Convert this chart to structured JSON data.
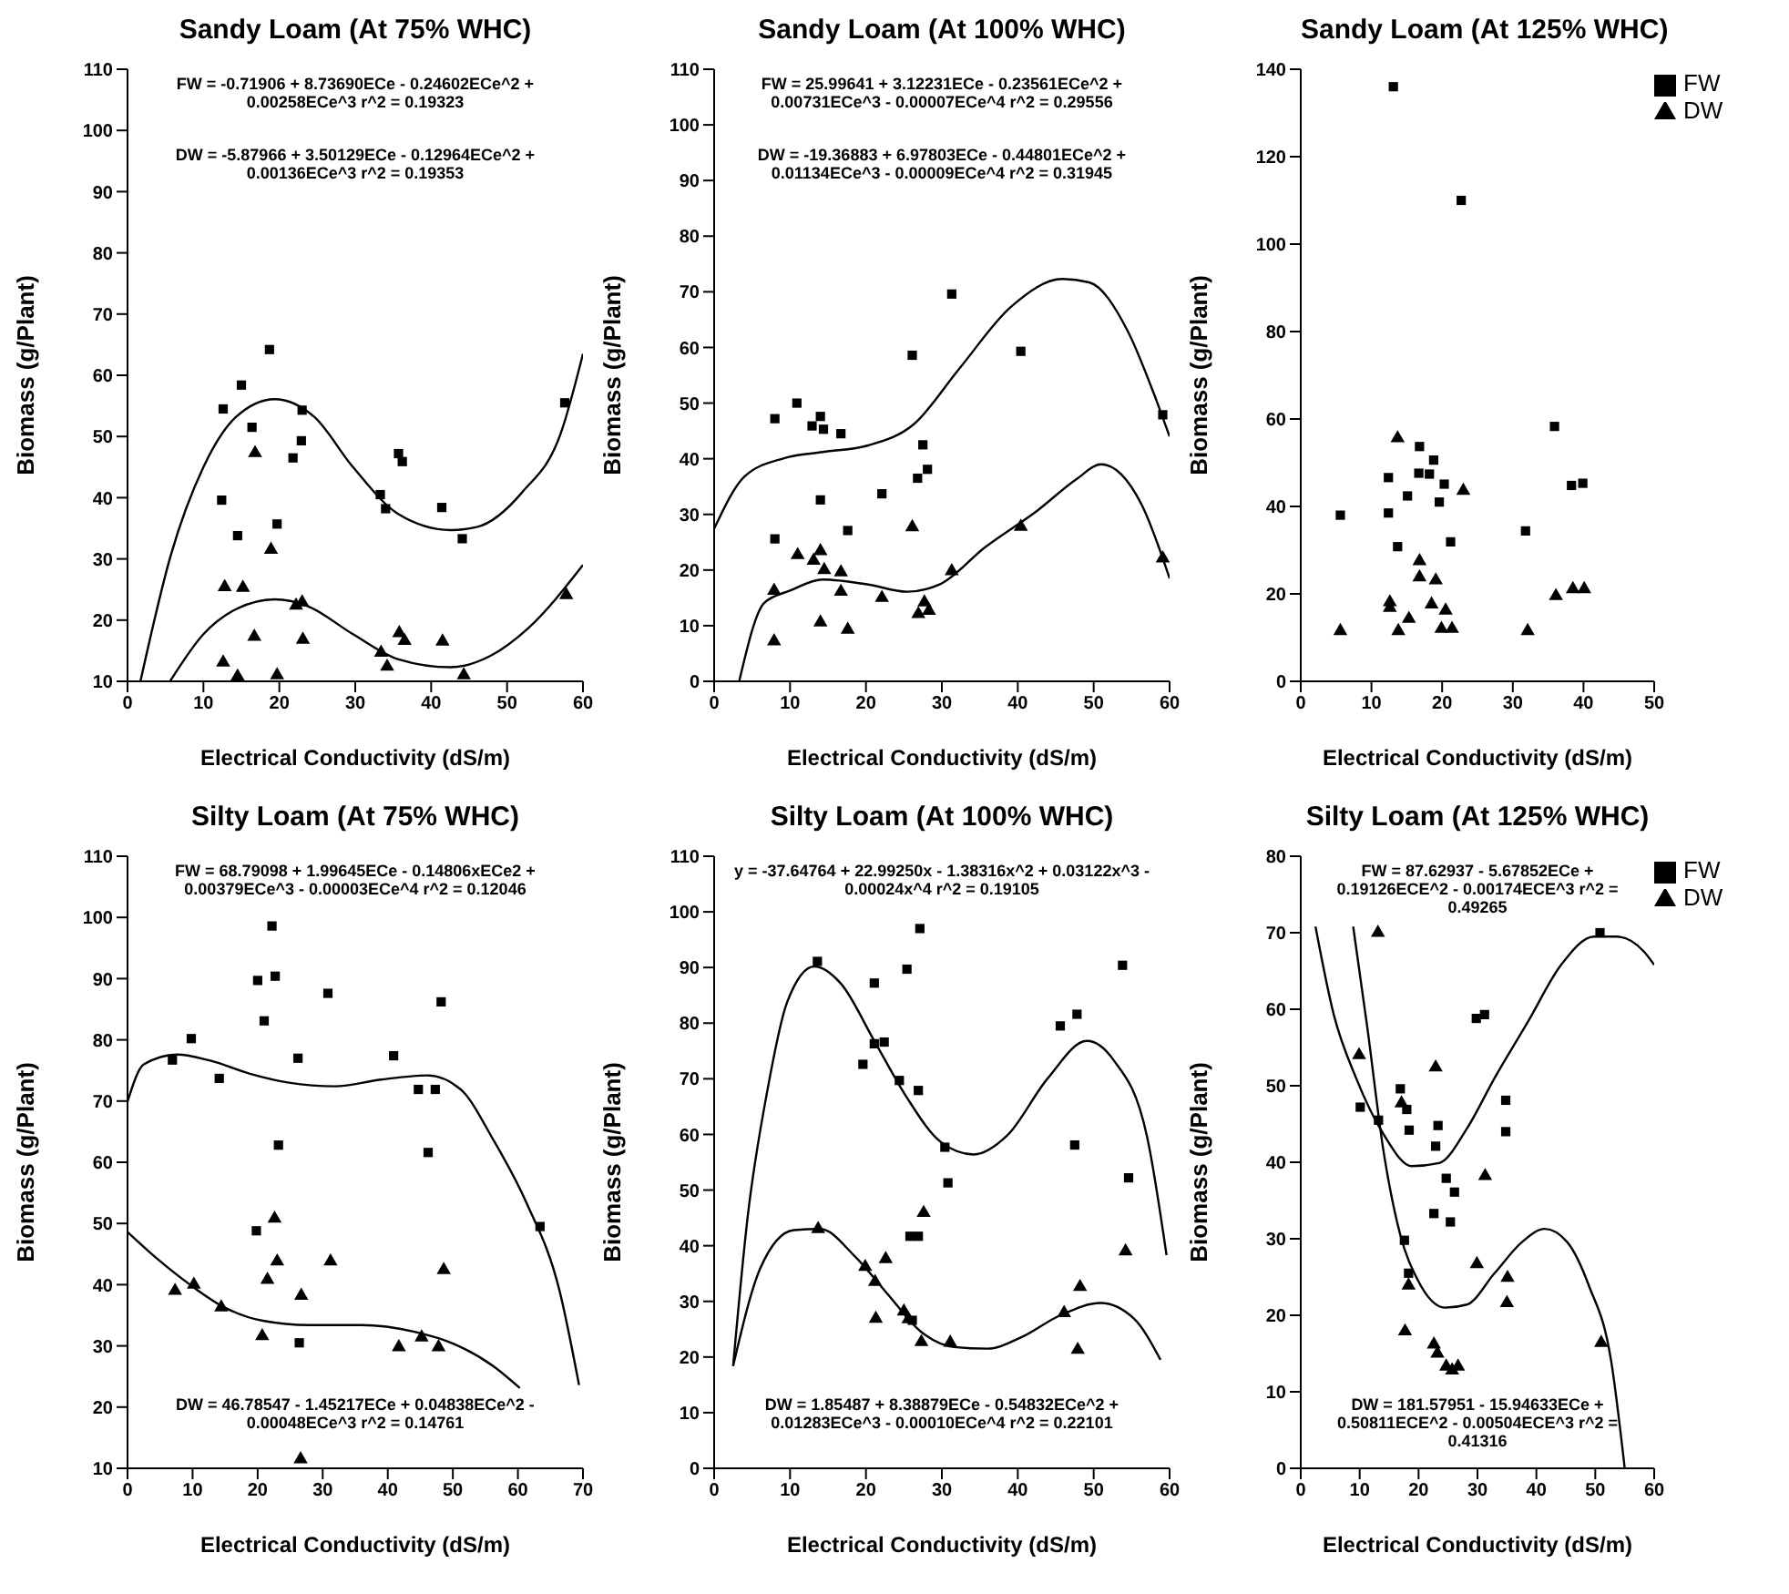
{
  "chart_data": [
    {
      "type": "scatter",
      "title": "Sandy Loam (At 75% WHC)",
      "xlabel": "Electrical Conductivity (dS/m)",
      "ylabel": "Biomass (g/Plant)",
      "xlim": [
        0,
        60
      ],
      "xticks": [
        0,
        10,
        20,
        30,
        40,
        50,
        60
      ],
      "ylim": [
        10,
        110
      ],
      "yticks": [
        10,
        20,
        30,
        40,
        50,
        60,
        70,
        80,
        90,
        100,
        110
      ],
      "series": [
        {
          "type": "scatter",
          "marker": "square",
          "color": "#000000",
          "x": [
            12.6,
            15,
            16.4,
            18.7,
            23,
            22.9,
            21.8,
            19.7,
            12.4,
            14.5,
            33.3,
            34,
            35.7,
            36.2,
            41.4,
            44.1,
            57.6
          ],
          "values": [
            54.5,
            58.4,
            51.5,
            64.2,
            54.3,
            49.3,
            46.5,
            35.7,
            39.6,
            33.8,
            40.5,
            38.2,
            47.2,
            45.9,
            38.4,
            33.3,
            55.5
          ]
        },
        {
          "type": "scatter",
          "marker": "triangle",
          "color": "#000000",
          "x": [
            16.8,
            18.9,
            12.8,
            15.2,
            16.7,
            12.6,
            14.5,
            19.7,
            23.1,
            22.2,
            23,
            33.4,
            34.2,
            35.8,
            36.5,
            41.5,
            44.3,
            57.8
          ],
          "values": [
            47.3,
            31.5,
            25.4,
            25.3,
            17.3,
            13.1,
            10.8,
            11,
            16.8,
            22.4,
            22.9,
            14.7,
            12.4,
            17.9,
            16.6,
            16.5,
            11,
            24.1
          ]
        },
        {
          "type": "line",
          "marker": "none",
          "line_style": "solid",
          "color": "#000000",
          "x": [
            1.7,
            5.7,
            10,
            14.3,
            19.4,
            24.6,
            29.7,
            35.7,
            42.6,
            46,
            52,
            57.1,
            60
          ],
          "values": [
            10,
            30.6,
            45,
            53.2,
            56.1,
            53.2,
            45,
            37.3,
            34.7,
            35.2,
            40.9,
            50.6,
            63.5
          ]
        },
        {
          "type": "line",
          "marker": "none",
          "line_style": "solid",
          "color": "#000000",
          "x": [
            5.6,
            10,
            14.3,
            19.4,
            23.7,
            29.7,
            35.7,
            42.6,
            47.7,
            52.8,
            60
          ],
          "values": [
            10,
            17.7,
            21.8,
            23.4,
            22.3,
            17.7,
            13.6,
            12.3,
            14.1,
            18.7,
            29
          ]
        }
      ],
      "annotations": [
        "FW = -0.71906 + 8.73690ECe - 0.24602ECe^2 + 0.00258ECe^3   r^2 = 0.19323",
        "DW = -5.87966 + 3.50129ECe - 0.12964ECe^2 + 0.00136ECe^3   r^2 = 0.19353"
      ]
    },
    {
      "type": "scatter",
      "title": "Sandy Loam (At 100% WHC)",
      "xlabel": "Electrical Conductivity (dS/m)",
      "ylabel": "Biomass (g/Plant)",
      "xlim": [
        0,
        60
      ],
      "xticks": [
        0,
        10,
        20,
        30,
        40,
        50,
        60
      ],
      "ylim": [
        0,
        110
      ],
      "yticks": [
        0,
        10,
        20,
        30,
        40,
        50,
        60,
        70,
        80,
        90,
        100,
        110
      ],
      "series": [
        {
          "type": "scatter",
          "marker": "square",
          "color": "#000000",
          "x": [
            8,
            10.9,
            12.9,
            14,
            14.4,
            16.7,
            8,
            14,
            17.6,
            22.1,
            26.1,
            27.5,
            26.8,
            28.1,
            31.3,
            40.4,
            59.1
          ],
          "values": [
            47.2,
            50,
            45.9,
            47.6,
            45.3,
            44.5,
            25.6,
            32.6,
            27.1,
            33.7,
            58.6,
            42.5,
            36.5,
            38.1,
            69.6,
            59.3,
            47.9
          ]
        },
        {
          "type": "scatter",
          "marker": "triangle",
          "color": "#000000",
          "x": [
            7.9,
            7.9,
            11,
            13.1,
            14,
            14.5,
            16.7,
            16.7,
            14,
            17.6,
            22.1,
            26.1,
            26.9,
            27.7,
            28.3,
            31.3,
            40.4,
            59.1
          ],
          "values": [
            16.3,
            7.2,
            22.7,
            21.7,
            23.4,
            20,
            19.6,
            16.1,
            10.6,
            9.3,
            15,
            27.7,
            12.1,
            14.2,
            12.7,
            19.8,
            27.8,
            22.1
          ]
        },
        {
          "type": "line",
          "marker": "none",
          "line_style": "solid",
          "color": "#000000",
          "x": [
            0,
            4,
            9.2,
            14.3,
            20.3,
            26.3,
            32.3,
            39.1,
            45.9,
            49.4,
            54.5,
            57.9,
            60
          ],
          "values": [
            27.4,
            36.8,
            40.1,
            41.2,
            42.4,
            46.2,
            56.2,
            67.3,
            72.3,
            71.7,
            62.9,
            51.8,
            44
          ]
        },
        {
          "type": "line",
          "marker": "none",
          "line_style": "solid",
          "color": "#000000",
          "x": [
            3.3,
            6.6,
            10,
            14.3,
            20.3,
            25.4,
            29.7,
            35.7,
            42.6,
            47.7,
            51,
            56.3,
            60
          ],
          "values": [
            0,
            14.1,
            16.3,
            18.3,
            17.4,
            16.1,
            17.4,
            24.1,
            30.7,
            36.3,
            39,
            31.8,
            18.5
          ]
        }
      ],
      "annotations": [
        "FW = 25.99641 + 3.12231ECe - 0.23561ECe^2 + 0.00731ECe^3 - 0.00007ECe^4   r^2 = 0.29556",
        "DW = -19.36883 + 6.97803ECe - 0.44801ECe^2 + 0.01134ECe^3 - 0.00009ECe^4   r^2 = 0.31945"
      ]
    },
    {
      "type": "scatter",
      "title": "Sandy Loam (At 125% WHC)",
      "xlabel": "Electrical Conductivity (dS/m)",
      "ylabel": "Biomass (g/Plant)",
      "xlim": [
        0,
        50
      ],
      "xticks": [
        0,
        10,
        20,
        30,
        40,
        50
      ],
      "ylim": [
        0,
        140
      ],
      "yticks": [
        0,
        20,
        40,
        60,
        80,
        100,
        120,
        140
      ],
      "legend": "right",
      "series": [
        {
          "name": "FW",
          "type": "scatter",
          "marker": "square",
          "color": "#000000",
          "x": [
            13.1,
            22.7,
            5.6,
            12.4,
            12.4,
            13.7,
            15.1,
            16.8,
            16.7,
            18.2,
            18.8,
            20.3,
            19.6,
            21.2,
            31.8,
            35.9,
            38.3,
            39.9
          ],
          "values": [
            136,
            110,
            38,
            46.6,
            38.5,
            30.8,
            42.4,
            53.7,
            47.6,
            47.4,
            50.6,
            45.1,
            41,
            31.9,
            34.4,
            58.3,
            44.8,
            45.3
          ]
        },
        {
          "name": "DW",
          "type": "scatter",
          "marker": "triangle",
          "color": "#000000",
          "x": [
            13.7,
            23,
            16.8,
            16.8,
            19.1,
            12.6,
            12.6,
            18.5,
            20.5,
            15.3,
            13.8,
            5.6,
            19.9,
            21.4,
            32.1,
            36.1,
            38.5,
            40.1
          ],
          "values": [
            55.6,
            43.6,
            27.5,
            23.8,
            23.1,
            18.1,
            16.8,
            17.6,
            16.2,
            14.3,
            11.5,
            11.5,
            12,
            12,
            11.5,
            19.5,
            21.1,
            21.1
          ]
        }
      ]
    },
    {
      "type": "scatter",
      "title": "Silty Loam (At 75% WHC)",
      "xlabel": "Electrical Conductivity (dS/m)",
      "ylabel": "Biomass (g/Plant)",
      "xlim": [
        0,
        70
      ],
      "xticks": [
        0,
        10,
        20,
        30,
        40,
        50,
        60,
        70
      ],
      "ylim": [
        10,
        110
      ],
      "yticks": [
        10,
        20,
        30,
        40,
        50,
        60,
        70,
        80,
        90,
        100,
        110
      ],
      "series": [
        {
          "type": "scatter",
          "marker": "square",
          "color": "#000000",
          "x": [
            6.9,
            9.8,
            14.1,
            22.2,
            20,
            22.7,
            21,
            26.2,
            23.2,
            19.8,
            26.4,
            30.8,
            40.9,
            44.7,
            47.3,
            46.2,
            48.2,
            63.4
          ],
          "values": [
            76.7,
            80.2,
            73.7,
            98.6,
            89.7,
            90.4,
            83.1,
            77,
            62.8,
            48.8,
            30.5,
            87.6,
            77.4,
            71.9,
            71.9,
            61.6,
            86.2,
            49.5
          ]
        },
        {
          "type": "scatter",
          "marker": "triangle",
          "color": "#000000",
          "x": [
            7.3,
            10.2,
            14.4,
            22.6,
            21.5,
            23,
            20.7,
            26.7,
            31.2,
            26.6,
            41.7,
            45.2,
            47.8,
            48.6
          ],
          "values": [
            39,
            40,
            36.3,
            50.8,
            40.8,
            43.8,
            31.6,
            38.2,
            43.8,
            11.5,
            29.8,
            31.4,
            29.8,
            42.4
          ]
        },
        {
          "type": "line",
          "marker": "none",
          "line_style": "solid",
          "color": "#000000",
          "x": [
            0,
            2.5,
            7.6,
            12.7,
            18.7,
            24.8,
            31.9,
            38.9,
            46.1,
            51.2,
            56.2,
            61.3,
            66.4,
            69.4
          ],
          "values": [
            69.9,
            76,
            77.6,
            76.6,
            74.5,
            73,
            72.4,
            73.5,
            74.2,
            71.9,
            63.7,
            53.4,
            39,
            23.6
          ]
        },
        {
          "type": "line",
          "marker": "none",
          "line_style": "solid",
          "color": "#000000",
          "x": [
            0,
            4.6,
            9.6,
            14.7,
            20.8,
            27.9,
            36,
            44.1,
            50.2,
            56.2,
            60.3
          ],
          "values": [
            48.6,
            44.2,
            40,
            36.4,
            34.1,
            33.4,
            33.4,
            32.3,
            30.3,
            26.7,
            23.1
          ]
        }
      ],
      "annotations": [
        "FW = 68.79098 + 1.99645ECe - 0.14806xECe2 + 0.00379ECe^3 - 0.00003ECe^4   r^2 = 0.12046",
        "DW = 46.78547 - 1.45217ECe + 0.04838ECe^2 - 0.00048ECe^3   r^2 = 0.14761"
      ]
    },
    {
      "type": "scatter",
      "title": "Silty Loam (At 100% WHC)",
      "xlabel": "Electrical Conductivity (dS/m)",
      "ylabel": "Biomass (g/Plant)",
      "xlim": [
        0,
        60
      ],
      "xticks": [
        0,
        10,
        20,
        30,
        40,
        50,
        60
      ],
      "ylim": [
        0,
        110
      ],
      "yticks": [
        0,
        10,
        20,
        30,
        40,
        50,
        60,
        70,
        80,
        90,
        100,
        110
      ],
      "series": [
        {
          "type": "scatter",
          "marker": "square",
          "color": "#000000",
          "x": [
            13.6,
            21.1,
            25.4,
            27.1,
            19.6,
            21.1,
            22.4,
            24.4,
            26.9,
            30.4,
            30.8,
            25.8,
            26.9,
            45.6,
            47.8,
            47.5,
            53.8,
            54.6,
            26.1
          ],
          "values": [
            91.1,
            87.2,
            89.7,
            97,
            72.6,
            76.3,
            76.6,
            69.7,
            67.9,
            57.7,
            51.3,
            41.7,
            41.7,
            79.5,
            81.6,
            58.1,
            90.4,
            52.2,
            26.6
          ]
        },
        {
          "type": "scatter",
          "marker": "triangle",
          "color": "#000000",
          "x": [
            13.7,
            19.9,
            21.2,
            21.3,
            22.6,
            25,
            25.6,
            27.3,
            27.6,
            31.1,
            46.1,
            48.2,
            47.9,
            54.2
          ],
          "values": [
            43,
            36.2,
            33.5,
            26.9,
            37.6,
            28.2,
            26.8,
            22.7,
            45.9,
            22.6,
            27.9,
            32.6,
            21.3,
            39
          ]
        },
        {
          "type": "line",
          "marker": "none",
          "line_style": "solid",
          "color": "#000000",
          "x": [
            2.5,
            4.4,
            7,
            9.6,
            13.2,
            16.7,
            21.1,
            25.4,
            29.8,
            34.2,
            38.6,
            43.9,
            49.1,
            52.6,
            57,
            59.6
          ],
          "values": [
            18.4,
            45,
            67.8,
            83.7,
            90.2,
            87.1,
            76.8,
            66.6,
            58.7,
            56.4,
            59.8,
            70,
            76.8,
            73.4,
            59.8,
            38.3
          ]
        },
        {
          "type": "line",
          "marker": "none",
          "line_style": "solid",
          "color": "#000000",
          "x": [
            2.5,
            6.1,
            10.5,
            14,
            18.4,
            22.8,
            27.2,
            31.6,
            36,
            40.4,
            45.6,
            50.9,
            55.3,
            58.8
          ],
          "values": [
            18.4,
            36,
            42.8,
            43,
            38.3,
            31.4,
            24.6,
            21.8,
            21.5,
            23.5,
            27.5,
            29.7,
            26.9,
            19.5
          ]
        }
      ],
      "annotations": [
        "y = -37.64764 + 22.99250x - 1.38316x^2 + 0.03122x^3 - 0.00024x^4   r^2 = 0.19105",
        "DW = 1.85487 + 8.38879ECe - 0.54832ECe^2 + 0.01283ECe^3 - 0.00010ECe^4   r^2 = 0.22101"
      ]
    },
    {
      "type": "scatter",
      "title": "Silty Loam (At 125% WHC)",
      "xlabel": "Electrical Conductivity (dS/m)",
      "ylabel": "Biomass (g/Plant)",
      "xlim": [
        0,
        60
      ],
      "xticks": [
        0,
        10,
        20,
        30,
        40,
        50,
        60
      ],
      "ylim": [
        0,
        80
      ],
      "yticks": [
        0,
        10,
        20,
        30,
        40,
        50,
        60,
        70,
        80
      ],
      "legend": "right",
      "series": [
        {
          "name": "FW",
          "type": "scatter",
          "marker": "square",
          "color": "#000000",
          "x": [
            10.1,
            13.2,
            16.9,
            18,
            18.4,
            17.6,
            18.3,
            23.3,
            22.9,
            24.7,
            26.1,
            22.6,
            25.4,
            29.8,
            31.2,
            34.8,
            34.8,
            50.8
          ],
          "values": [
            47.2,
            45.5,
            49.6,
            46.9,
            44.2,
            29.8,
            25.5,
            44.8,
            42.1,
            37.9,
            36.1,
            33.3,
            32.2,
            58.8,
            59.3,
            48.1,
            44,
            70
          ]
        },
        {
          "name": "DW",
          "type": "scatter",
          "marker": "triangle",
          "color": "#000000",
          "x": [
            13.1,
            9.9,
            22.9,
            31.3,
            17.1,
            18.3,
            17.7,
            22.6,
            23.2,
            24.7,
            25.7,
            26.7,
            29.9,
            35.1,
            35,
            51
          ],
          "values": [
            70,
            54,
            52.4,
            38.2,
            47.7,
            23.9,
            17.9,
            16.2,
            15,
            13.3,
            12.8,
            13.3,
            26.7,
            24.9,
            21.6,
            16.4
          ]
        },
        {
          "type": "line",
          "marker": "none",
          "line_style": "solid",
          "color": "#000000",
          "x": [
            2.5,
            5.6,
            9.4,
            14.1,
            18.8,
            23.5,
            28.2,
            32.9,
            38.6,
            44.2,
            49.8,
            53.6,
            58.3,
            60
          ],
          "values": [
            70.8,
            59.3,
            51,
            43.6,
            39.5,
            39.9,
            44.4,
            51,
            58.4,
            65.8,
            69.5,
            69.5,
            67.5,
            65.8
          ]
        },
        {
          "type": "line",
          "marker": "none",
          "line_style": "solid",
          "color": "#000000",
          "x": [
            8.9,
            11.3,
            14.1,
            16.9,
            19.8,
            24.5,
            28.2,
            32.9,
            37.6,
            41.4,
            45.2,
            48.9,
            52.7,
            55
          ],
          "values": [
            70.8,
            57.6,
            41.2,
            30.5,
            24.7,
            21,
            21.4,
            25.5,
            29.6,
            31.3,
            29.6,
            23.9,
            14,
            0
          ]
        }
      ],
      "annotations": [
        "FW = 87.62937 - 5.67852ECe + 0.19126ECE^2 - 0.00174ECE^3   r^2 = 0.49265",
        "DW = 181.57951 - 15.94633ECe + 0.50811ECE^2 - 0.00504ECE^3   r^2 = 0.41316"
      ]
    }
  ]
}
